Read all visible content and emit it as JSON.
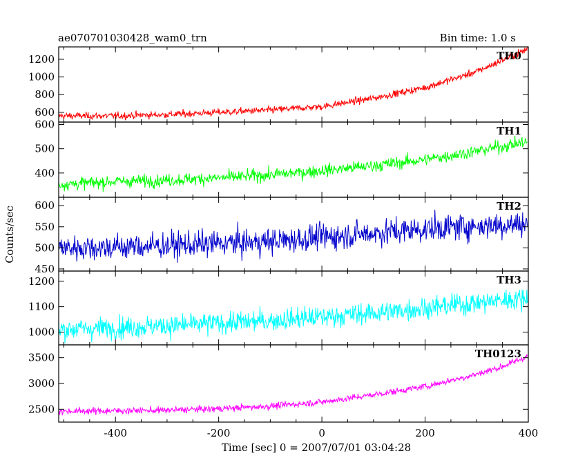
{
  "header": {
    "title": "ae070701030428_wam0_trn",
    "bin_time": "Bin time: 1.0 s"
  },
  "axes": {
    "xlabel": "Time [sec] 0 = 2007/07/01 03:04:28",
    "ylabel": "Counts/sec"
  },
  "chart_data": {
    "type": "line",
    "x_range": [
      -510,
      400
    ],
    "x_ticks": [
      -400,
      -200,
      0,
      200,
      400
    ],
    "panels": [
      {
        "name": "TH0",
        "color": "#ff0000",
        "ylim": [
          490,
          1340
        ],
        "yticks": [
          600,
          800,
          1000,
          1200
        ],
        "noise": 28,
        "points": [
          [
            -510,
            560
          ],
          [
            -400,
            560
          ],
          [
            -300,
            575
          ],
          [
            -200,
            600
          ],
          [
            -100,
            625
          ],
          [
            0,
            665
          ],
          [
            100,
            760
          ],
          [
            200,
            880
          ],
          [
            300,
            1060
          ],
          [
            350,
            1190
          ],
          [
            400,
            1320
          ]
        ]
      },
      {
        "name": "TH1",
        "color": "#00ff00",
        "ylim": [
          300,
          610
        ],
        "yticks": [
          400,
          500,
          600
        ],
        "noise": 18,
        "points": [
          [
            -510,
            352
          ],
          [
            -400,
            365
          ],
          [
            -300,
            370
          ],
          [
            -200,
            380
          ],
          [
            -100,
            392
          ],
          [
            0,
            410
          ],
          [
            100,
            430
          ],
          [
            200,
            455
          ],
          [
            300,
            490
          ],
          [
            400,
            530
          ]
        ]
      },
      {
        "name": "TH2",
        "color": "#0000cc",
        "ylim": [
          445,
          620
        ],
        "yticks": [
          450,
          500,
          550,
          600
        ],
        "noise": 22,
        "points": [
          [
            -510,
            500
          ],
          [
            -400,
            502
          ],
          [
            -300,
            505
          ],
          [
            -200,
            510
          ],
          [
            -100,
            515
          ],
          [
            0,
            525
          ],
          [
            100,
            535
          ],
          [
            200,
            545
          ],
          [
            300,
            552
          ],
          [
            400,
            557
          ]
        ]
      },
      {
        "name": "TH3",
        "color": "#00ffff",
        "ylim": [
          950,
          1240
        ],
        "yticks": [
          1000,
          1100,
          1200
        ],
        "noise": 30,
        "points": [
          [
            -510,
            1010
          ],
          [
            -400,
            1018
          ],
          [
            -300,
            1025
          ],
          [
            -200,
            1035
          ],
          [
            -100,
            1045
          ],
          [
            0,
            1060
          ],
          [
            100,
            1075
          ],
          [
            200,
            1095
          ],
          [
            300,
            1115
          ],
          [
            400,
            1135
          ]
        ]
      },
      {
        "name": "TH0123",
        "color": "#ff00ff",
        "ylim": [
          2250,
          3750
        ],
        "yticks": [
          2500,
          3000,
          3500
        ],
        "noise": 45,
        "points": [
          [
            -510,
            2460
          ],
          [
            -400,
            2470
          ],
          [
            -300,
            2480
          ],
          [
            -200,
            2510
          ],
          [
            -100,
            2560
          ],
          [
            0,
            2640
          ],
          [
            100,
            2780
          ],
          [
            200,
            2940
          ],
          [
            300,
            3180
          ],
          [
            350,
            3330
          ],
          [
            400,
            3530
          ]
        ]
      }
    ]
  }
}
